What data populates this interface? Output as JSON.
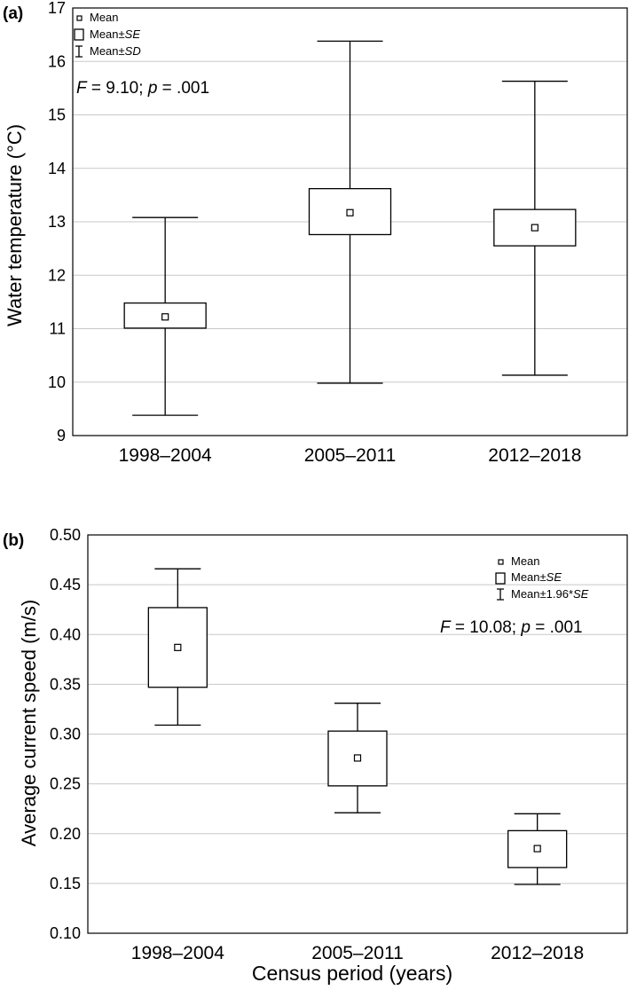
{
  "chart_data": [
    {
      "panel": "(a)",
      "type": "box",
      "ylabel": "Water temperature (°C)",
      "xlabel": "",
      "ylim": [
        9,
        17
      ],
      "yticks": [
        "9",
        "10",
        "11",
        "12",
        "13",
        "14",
        "15",
        "16",
        "17"
      ],
      "categories": [
        "1998–2004",
        "2005–2011",
        "2012–2018"
      ],
      "mean": [
        11.22,
        13.17,
        12.89
      ],
      "box_low": [
        11.01,
        12.76,
        12.55
      ],
      "box_high": [
        11.48,
        13.62,
        13.23
      ],
      "whisker_low": [
        9.38,
        9.98,
        10.13
      ],
      "whisker_high": [
        13.08,
        16.38,
        15.63
      ],
      "legend": {
        "mean": "Mean",
        "box": "Mean±",
        "box_em": "SE",
        "whisker": "Mean±",
        "whisker_em": "SD"
      },
      "stat": {
        "f_label": "F",
        "f_text": " = 9.10; ",
        "p_label": "p",
        "p_text": " = .001"
      }
    },
    {
      "panel": "(b)",
      "type": "box",
      "ylabel": "Average current speed (m/s)",
      "xlabel": "Census period (years)",
      "ylim": [
        0.1,
        0.5
      ],
      "yticks": [
        "0.10",
        "0.15",
        "0.20",
        "0.25",
        "0.30",
        "0.35",
        "0.40",
        "0.45",
        "0.50"
      ],
      "categories": [
        "1998–2004",
        "2005–2011",
        "2012–2018"
      ],
      "mean": [
        0.387,
        0.276,
        0.185
      ],
      "box_low": [
        0.347,
        0.248,
        0.166
      ],
      "box_high": [
        0.427,
        0.303,
        0.203
      ],
      "whisker_low": [
        0.309,
        0.221,
        0.149
      ],
      "whisker_high": [
        0.466,
        0.331,
        0.22
      ],
      "legend": {
        "mean": "Mean",
        "box": "Mean±",
        "box_em": "SE",
        "whisker": "Mean±1.96*",
        "whisker_em": "SE"
      },
      "stat": {
        "f_label": "F",
        "f_text": " = 10.08; ",
        "p_label": "p",
        "p_text": " = .001"
      }
    }
  ]
}
